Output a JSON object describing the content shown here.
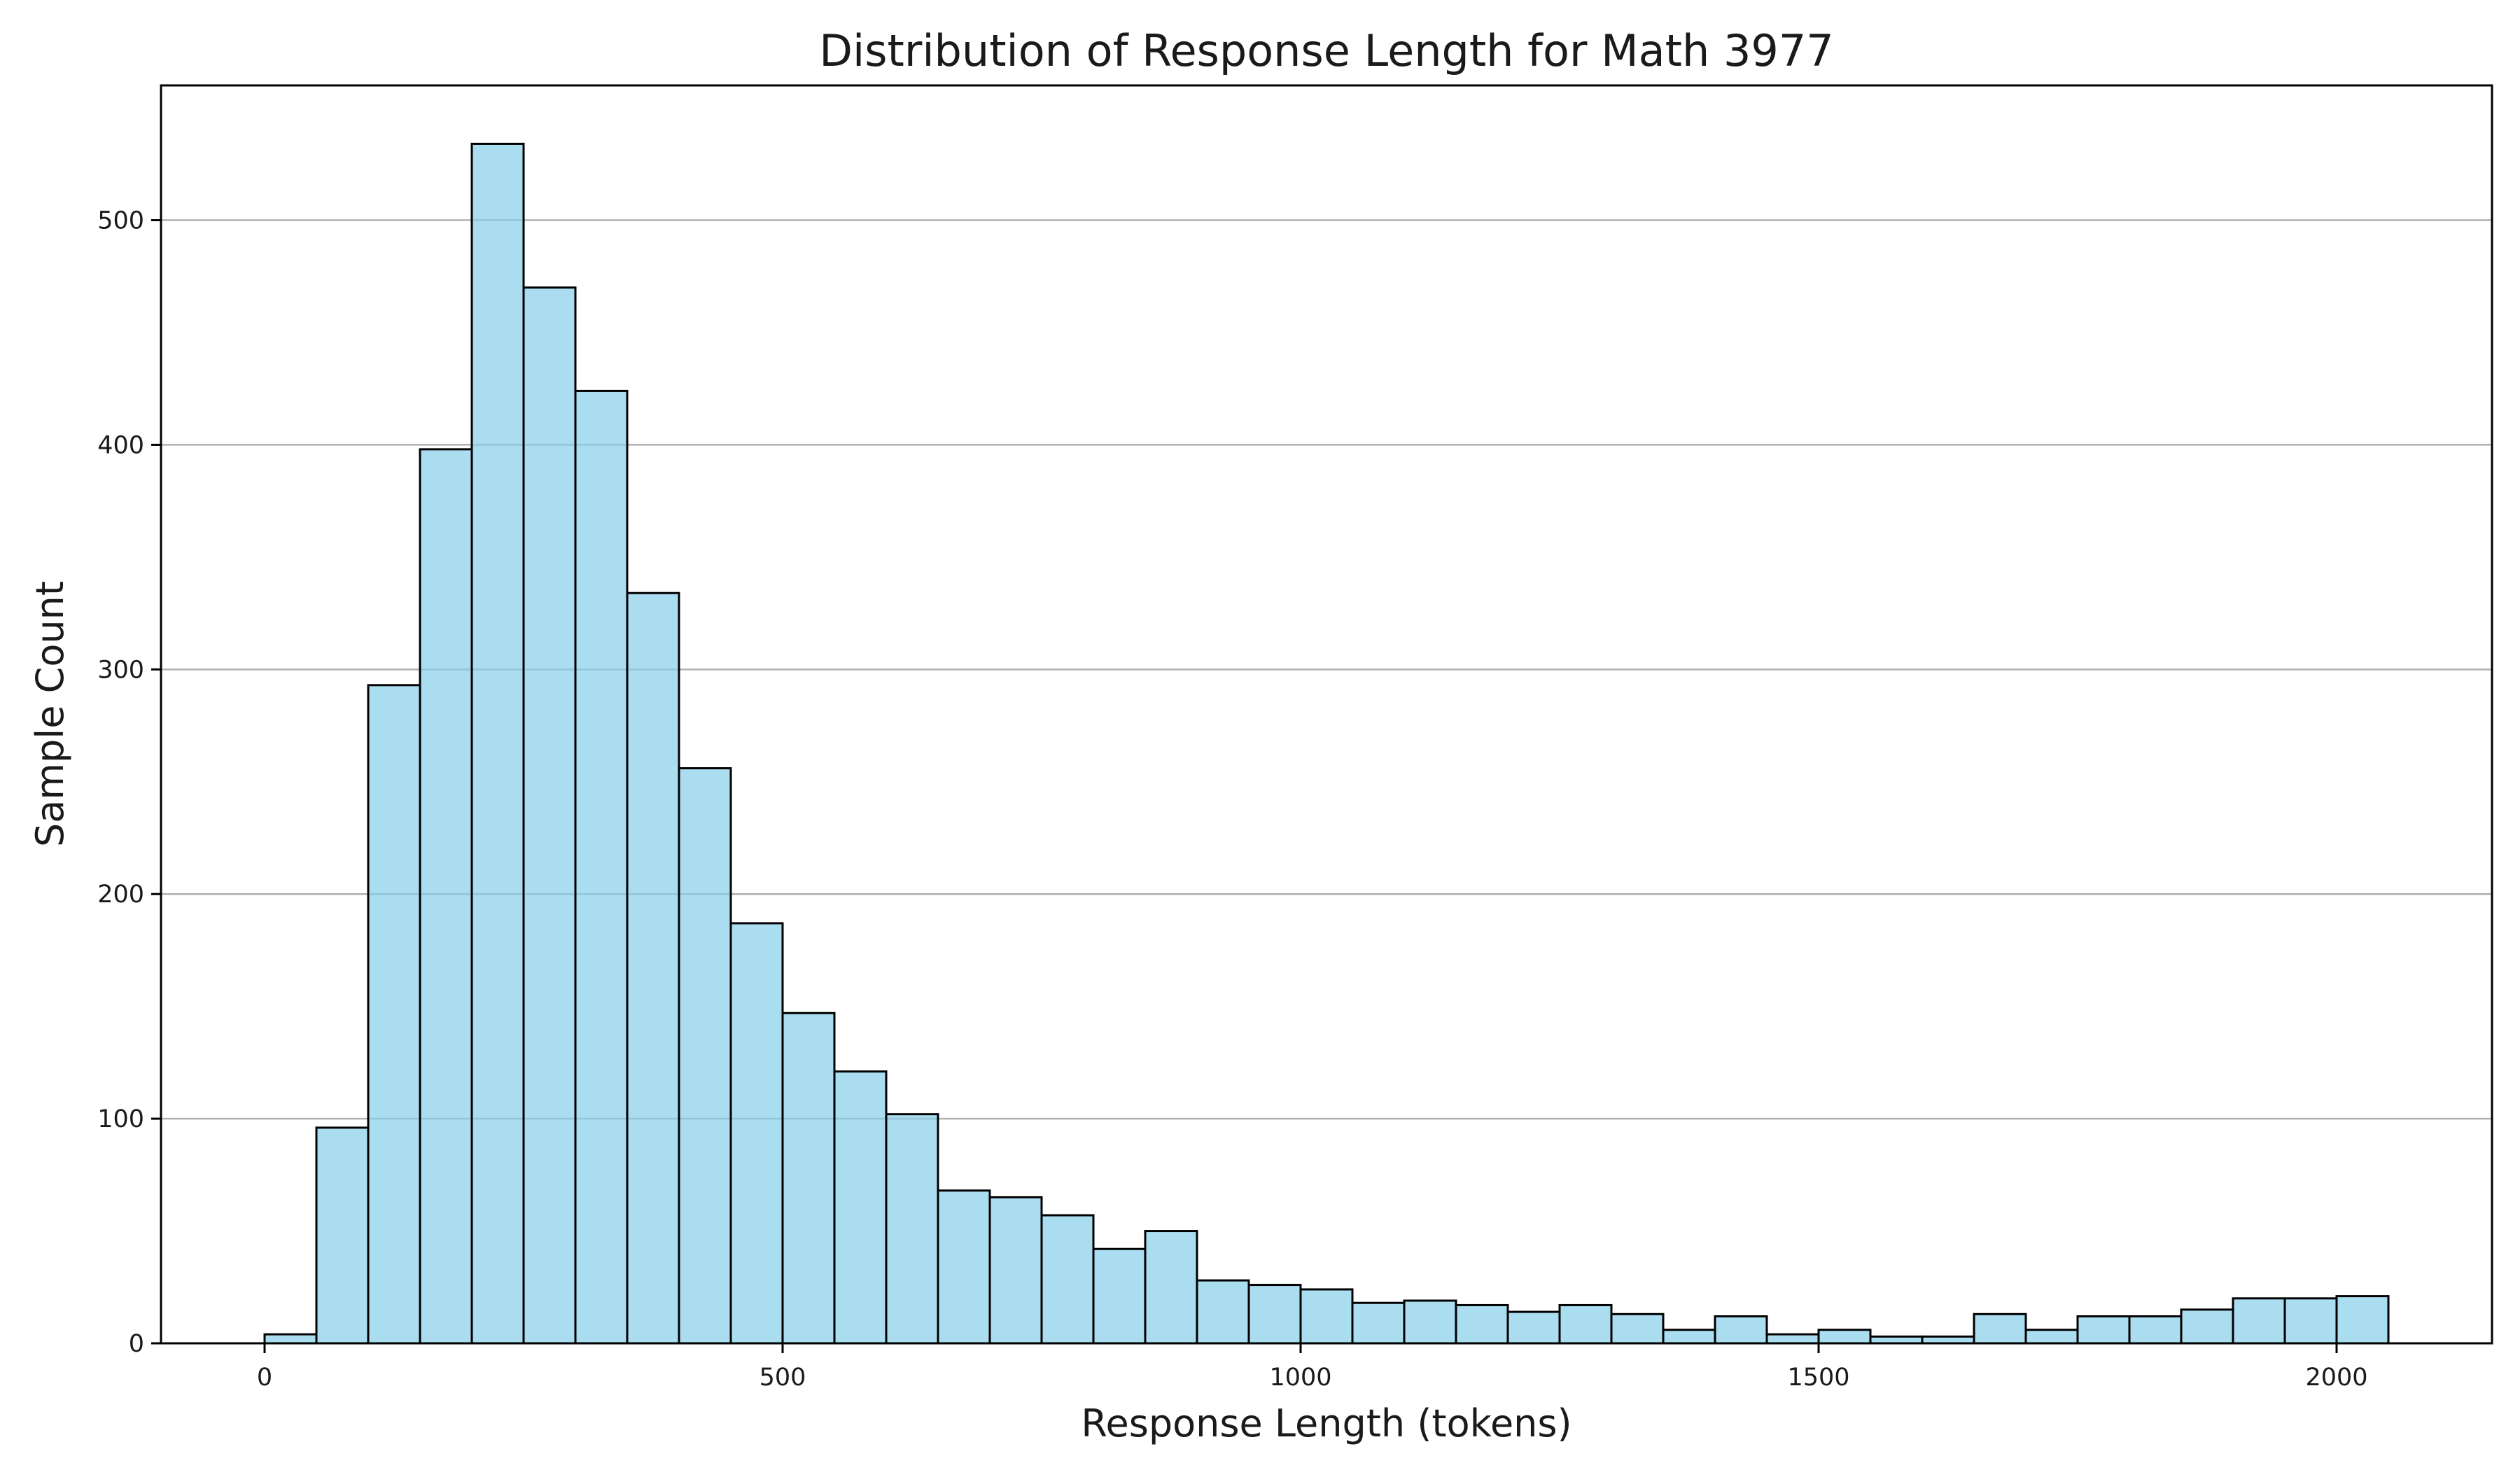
{
  "chart_data": {
    "type": "bar",
    "title": "Distribution of Response Length for Math 3977",
    "xlabel": "Response Length (tokens)",
    "ylabel": "Sample Count",
    "bin_width": 50,
    "bin_start": 0,
    "values": [
      4,
      96,
      293,
      398,
      534,
      470,
      424,
      334,
      256,
      187,
      147,
      121,
      102,
      68,
      65,
      57,
      42,
      50,
      28,
      26,
      24,
      18,
      19,
      17,
      14,
      17,
      13,
      6,
      12,
      4,
      6,
      3,
      3,
      13,
      6,
      12,
      12,
      15,
      20,
      20,
      21
    ],
    "xlim": [
      -100,
      2150
    ],
    "ylim": [
      0,
      560
    ],
    "xticks": [
      0,
      500,
      1000,
      1500,
      2000
    ],
    "xtick_labels": [
      "0",
      "500",
      "1000",
      "1500",
      "2000"
    ],
    "yticks": [
      0,
      100,
      200,
      300,
      400,
      500
    ],
    "ytick_labels": [
      "0",
      "100",
      "200",
      "300",
      "400",
      "500"
    ],
    "grid": "y",
    "bar_color": "#87CEEB",
    "edge_color": "#000000"
  }
}
